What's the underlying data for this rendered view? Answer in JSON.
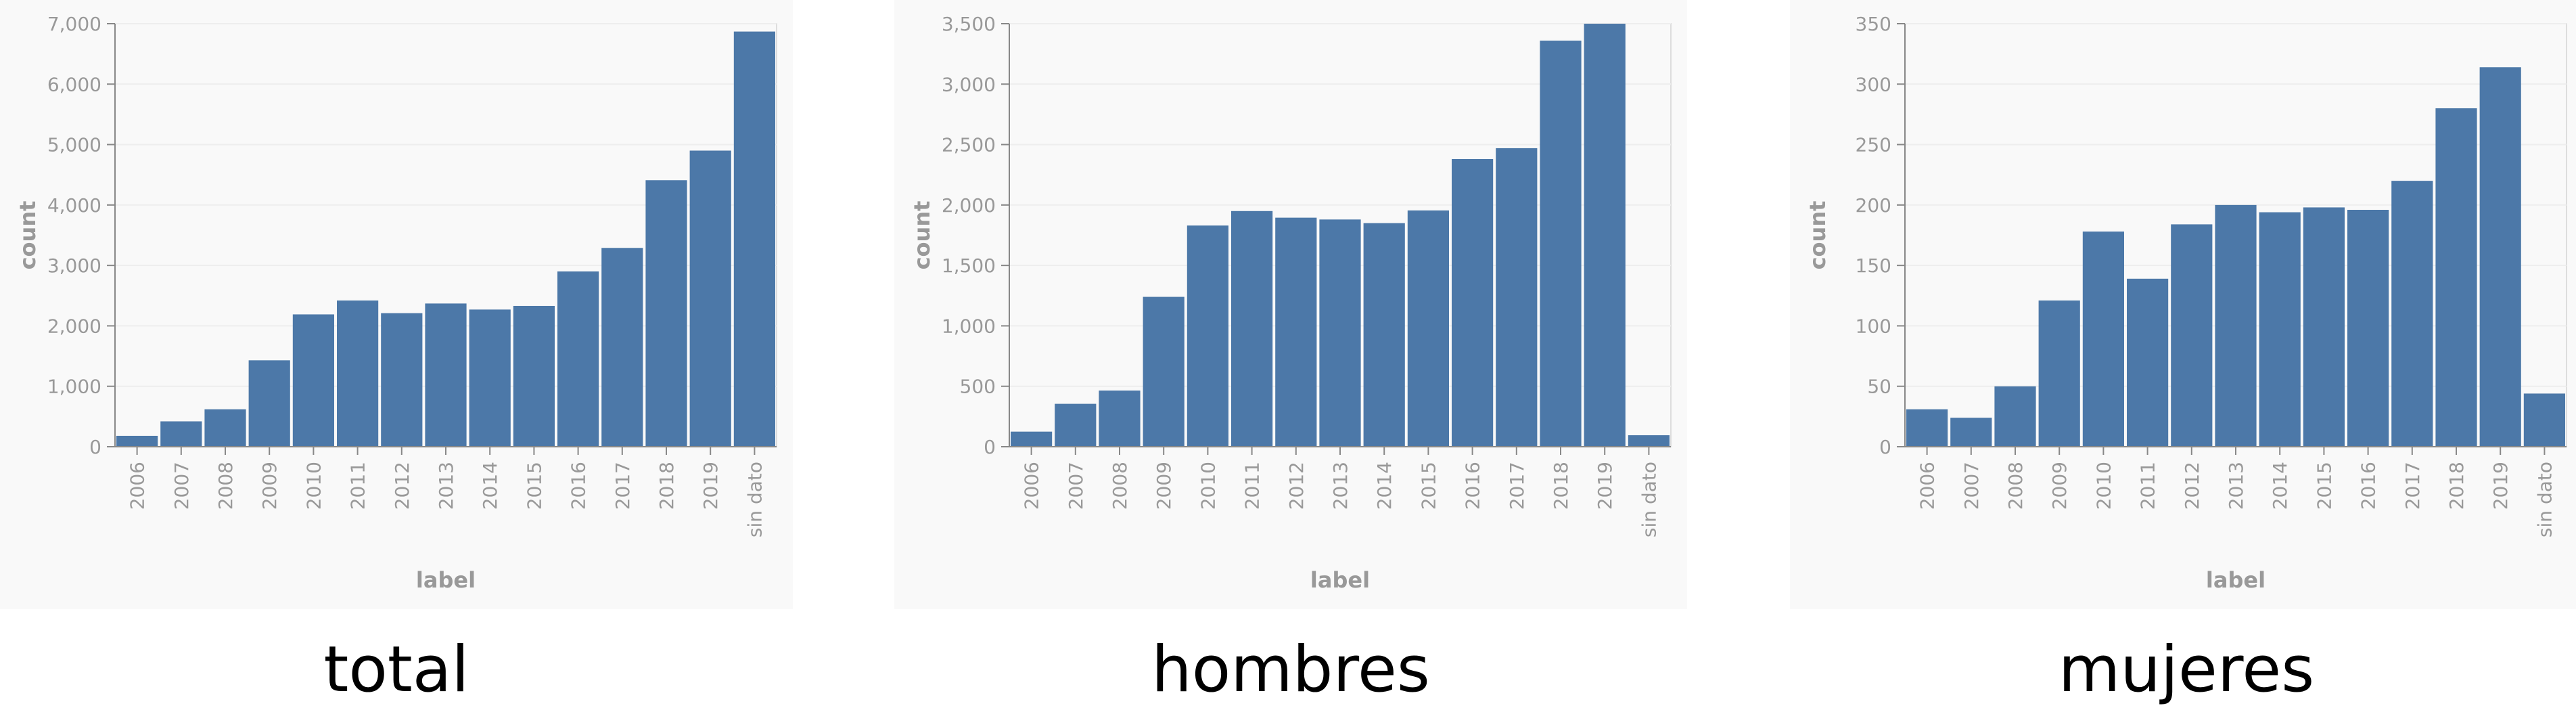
{
  "charts": [
    {
      "caption": "total",
      "chart_data": {
        "type": "bar",
        "categories": [
          "2006",
          "2007",
          "2008",
          "2009",
          "2010",
          "2011",
          "2012",
          "2013",
          "2014",
          "2015",
          "2016",
          "2017",
          "2018",
          "2019",
          "sin dato"
        ],
        "values": [
          180,
          420,
          620,
          1430,
          2190,
          2420,
          2210,
          2370,
          2270,
          2330,
          2900,
          3290,
          4410,
          4900,
          6870
        ],
        "xlabel": "label",
        "ylabel": "count",
        "ylim": [
          0,
          7000
        ],
        "yticks": [
          0,
          1000,
          2000,
          3000,
          4000,
          5000,
          6000,
          7000
        ],
        "ytick_labels": [
          "0",
          "1,000",
          "2,000",
          "3,000",
          "4,000",
          "5,000",
          "6,000",
          "7,000"
        ],
        "bar_color": "#4c78a8"
      }
    },
    {
      "caption": "hombres",
      "chart_data": {
        "type": "bar",
        "categories": [
          "2006",
          "2007",
          "2008",
          "2009",
          "2010",
          "2011",
          "2012",
          "2013",
          "2014",
          "2015",
          "2016",
          "2017",
          "2018",
          "2019",
          "sin dato"
        ],
        "values": [
          125,
          355,
          465,
          1240,
          1830,
          1950,
          1895,
          1880,
          1850,
          1955,
          2380,
          2470,
          3360,
          3500,
          95
        ],
        "xlabel": "label",
        "ylabel": "count",
        "ylim": [
          0,
          3500
        ],
        "yticks": [
          0,
          500,
          1000,
          1500,
          2000,
          2500,
          3000,
          3500
        ],
        "ytick_labels": [
          "0",
          "500",
          "1,000",
          "1,500",
          "2,000",
          "2,500",
          "3,000",
          "3,500"
        ],
        "bar_color": "#4c78a8"
      }
    },
    {
      "caption": "mujeres",
      "chart_data": {
        "type": "bar",
        "categories": [
          "2006",
          "2007",
          "2008",
          "2009",
          "2010",
          "2011",
          "2012",
          "2013",
          "2014",
          "2015",
          "2016",
          "2017",
          "2018",
          "2019",
          "sin dato"
        ],
        "values": [
          31,
          24,
          50,
          121,
          178,
          139,
          184,
          200,
          194,
          198,
          196,
          220,
          280,
          314,
          44
        ],
        "xlabel": "label",
        "ylabel": "count",
        "ylim": [
          0,
          350
        ],
        "yticks": [
          0,
          50,
          100,
          150,
          200,
          250,
          300,
          350
        ],
        "ytick_labels": [
          "0",
          "50",
          "100",
          "150",
          "200",
          "250",
          "300",
          "350"
        ],
        "bar_color": "#4c78a8"
      }
    }
  ]
}
